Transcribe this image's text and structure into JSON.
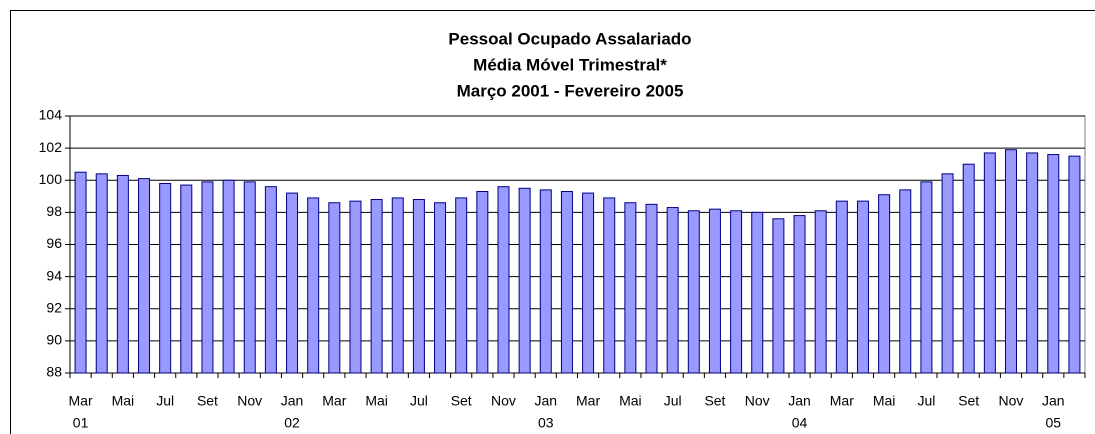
{
  "chart_data": {
    "type": "bar",
    "title": [
      "Pessoal Ocupado Assalariado",
      "Média Móvel Trimestral*",
      "Março 2001 - Fevereiro 2005"
    ],
    "categories": [
      "Mar",
      null,
      "Mai",
      null,
      "Jul",
      null,
      "Set",
      null,
      "Nov",
      null,
      "Jan",
      null,
      "Mar",
      null,
      "Mai",
      null,
      "Jul",
      null,
      "Set",
      null,
      "Nov",
      null,
      "Jan",
      null,
      "Mar",
      null,
      "Mai",
      null,
      "Jul",
      null,
      "Set",
      null,
      "Nov",
      null,
      "Jan",
      null,
      "Mar",
      null,
      "Mai",
      null,
      "Jul",
      null,
      "Set",
      null,
      "Nov",
      null,
      "Jan",
      null
    ],
    "category_groups": [
      "01",
      null,
      null,
      null,
      null,
      null,
      null,
      null,
      null,
      null,
      "02",
      null,
      null,
      null,
      null,
      null,
      null,
      null,
      null,
      null,
      null,
      null,
      "03",
      null,
      null,
      null,
      null,
      null,
      null,
      null,
      null,
      null,
      null,
      null,
      "04",
      null,
      null,
      null,
      null,
      null,
      null,
      null,
      null,
      null,
      null,
      null,
      "05",
      null
    ],
    "values": [
      100.5,
      100.4,
      100.3,
      100.1,
      99.8,
      99.7,
      99.9,
      100.0,
      99.9,
      99.6,
      99.2,
      98.9,
      98.6,
      98.7,
      98.8,
      98.9,
      98.8,
      98.6,
      98.9,
      99.3,
      99.6,
      99.5,
      99.4,
      99.3,
      99.2,
      98.9,
      98.6,
      98.5,
      98.3,
      98.1,
      98.2,
      98.1,
      98.0,
      97.6,
      97.8,
      98.1,
      98.7,
      98.7,
      99.1,
      99.4,
      99.9,
      100.4,
      101.0,
      101.7,
      101.9,
      101.7,
      101.6,
      101.5
    ],
    "color": "#9999ff",
    "ylim": [
      88,
      104
    ],
    "yticks": [
      88,
      90,
      92,
      94,
      96,
      98,
      100,
      102,
      104
    ],
    "grid": true
  }
}
